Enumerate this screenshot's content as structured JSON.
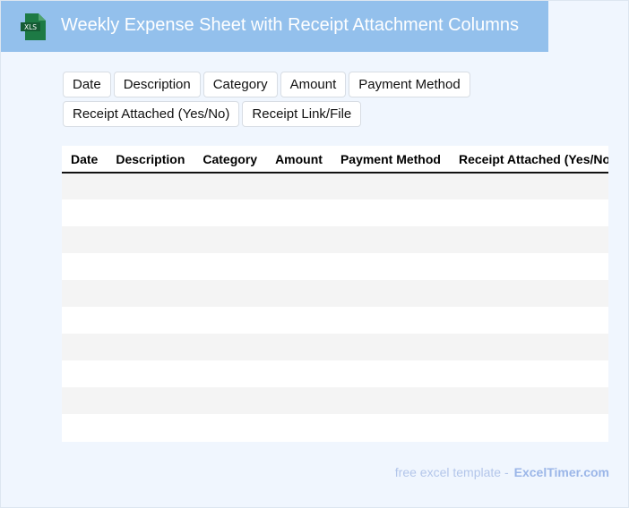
{
  "header": {
    "title": "Weekly Expense Sheet with Receipt Attachment Columns",
    "logo_text": "XLS",
    "accent": "#93c0ec",
    "logo_color": "#1d7a45"
  },
  "chips": [
    "Date",
    "Description",
    "Category",
    "Amount",
    "Payment Method",
    "Receipt Attached (Yes/No)",
    "Receipt Link/File"
  ],
  "table": {
    "columns": [
      "Date",
      "Description",
      "Category",
      "Amount",
      "Payment Method",
      "Receipt Attached (Yes/No)",
      "Receipt Link/File"
    ],
    "row_count": 10
  },
  "footer": {
    "prefix": "free excel template -",
    "brand": "ExcelTimer.com"
  }
}
